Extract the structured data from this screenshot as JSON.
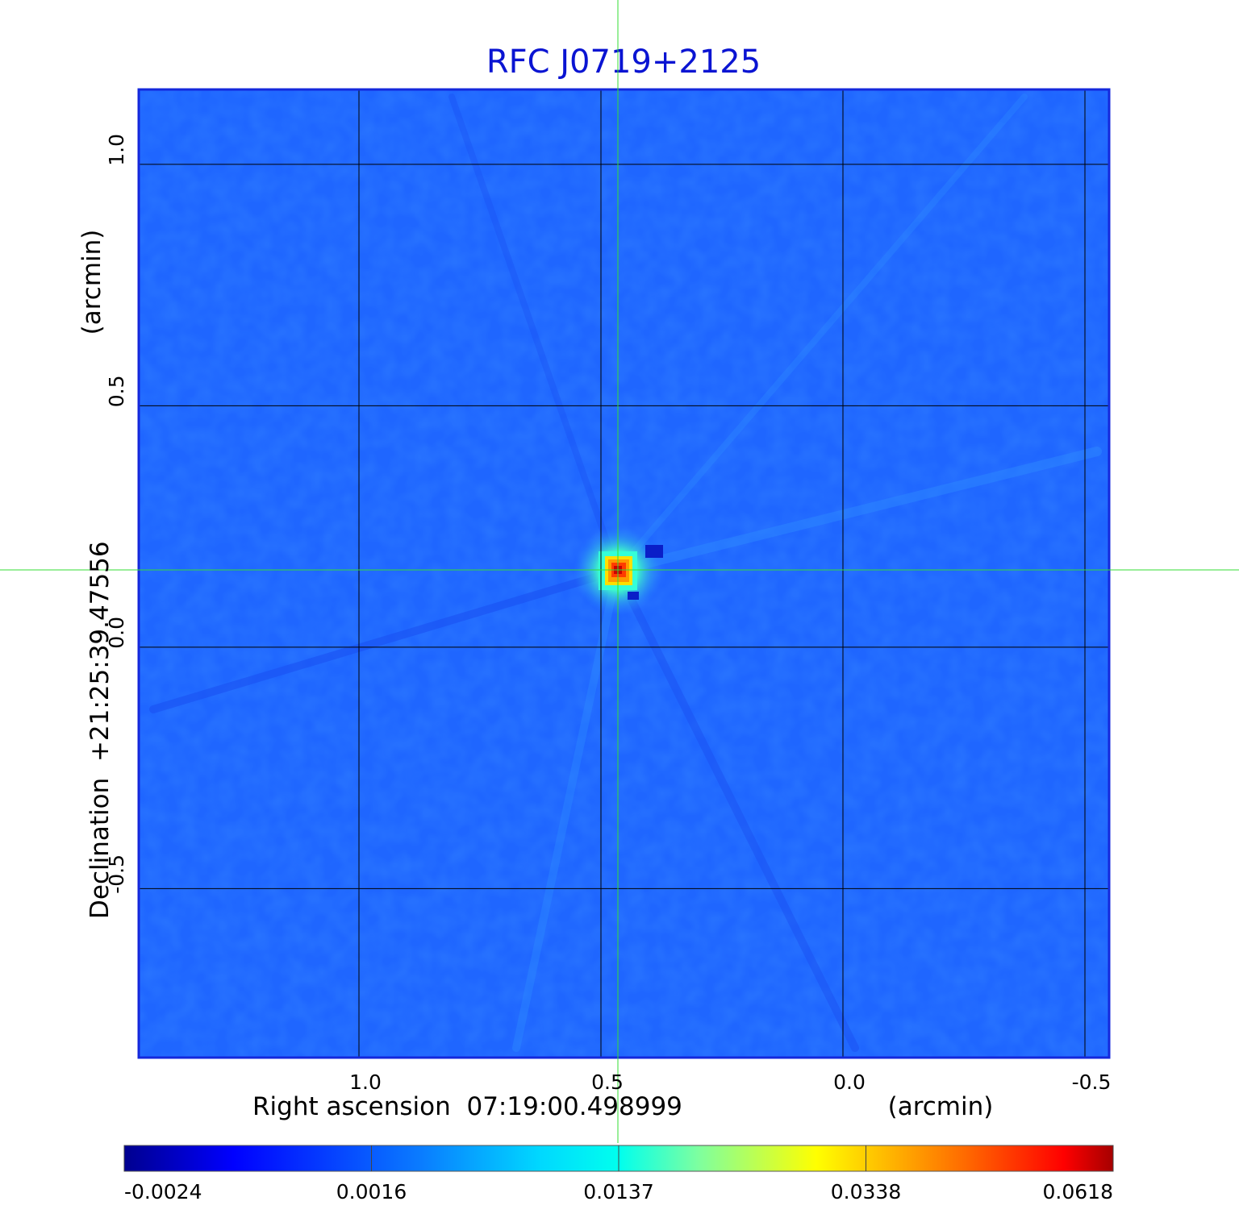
{
  "chart_data": {
    "type": "heatmap",
    "title": "RFC J0719+2125",
    "xlabel": "Right ascension  07:19:00.498999",
    "xunit": "(arcmin)",
    "ylabel": "Declination  +21:25:39.47556",
    "yunit": "(arcmin)",
    "xlim": [
      1.455,
      -0.55
    ],
    "ylim": [
      -0.85,
      1.155
    ],
    "xticks": [
      {
        "value": 1.0,
        "label": "1.0"
      },
      {
        "value": 0.5,
        "label": "0.5"
      },
      {
        "value": 0.0,
        "label": "0.0"
      },
      {
        "value": -0.5,
        "label": "-0.5"
      }
    ],
    "yticks": [
      {
        "value": 1.0,
        "label": "1.0"
      },
      {
        "value": 0.5,
        "label": "0.5"
      },
      {
        "value": 0.0,
        "label": "0.0"
      },
      {
        "value": -0.5,
        "label": "-0.5"
      }
    ],
    "grid": true,
    "crosshair": {
      "x": 0.465,
      "y": 0.16,
      "color": "#33dd33"
    },
    "source_peak": {
      "x": 0.465,
      "y": 0.16,
      "value": 0.0618
    },
    "colorbar": {
      "colormap": "jet",
      "tick_labels": [
        "-0.0024",
        "0.0016",
        "0.0137",
        "0.0338",
        "0.0618"
      ],
      "min": -0.0024,
      "max": 0.0618
    },
    "colors": {
      "title": "#0a14d2",
      "frame": "#1428dc",
      "background_field": "#1f66ff",
      "grid": "#000000"
    }
  }
}
